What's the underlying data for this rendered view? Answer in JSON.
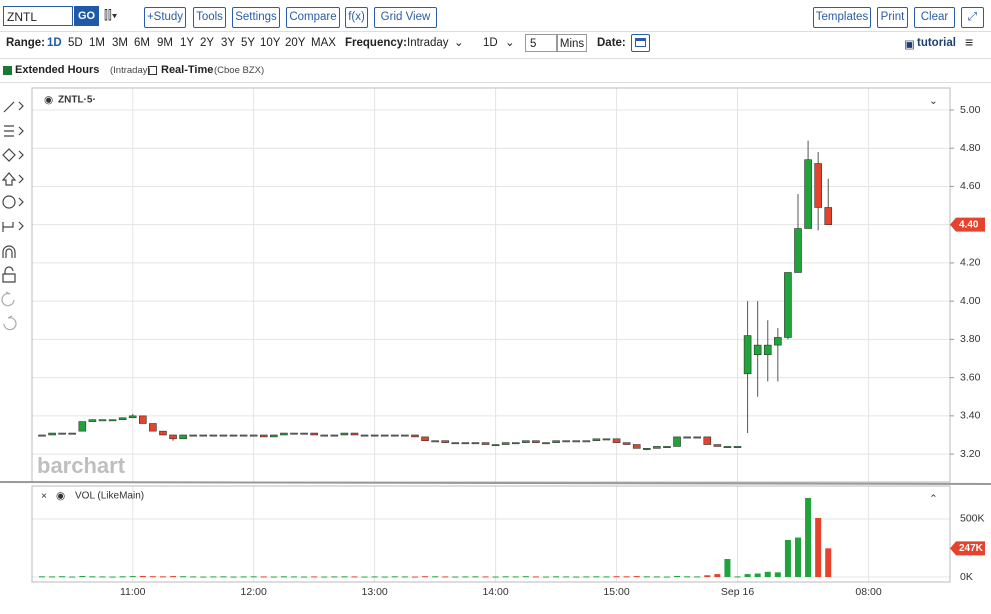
{
  "toolbar": {
    "symbol": "ZNTL",
    "go": "GO",
    "buttons": [
      "+Study",
      "Tools",
      "Settings",
      "Compare",
      "f(x)",
      "Grid View"
    ],
    "right_buttons": [
      "Templates",
      "Print",
      "Clear"
    ]
  },
  "controls": {
    "range_label": "Range:",
    "ranges": [
      "1D",
      "5D",
      "1M",
      "3M",
      "6M",
      "9M",
      "1Y",
      "2Y",
      "3Y",
      "5Y",
      "10Y",
      "20Y",
      "MAX"
    ],
    "frequency_label": "Frequency:",
    "frequency": "Intraday",
    "period": "1D",
    "interval": "5",
    "interval_unit": "Mins",
    "date_label": "Date:",
    "tutorial": "tutorial"
  },
  "legend_bar": {
    "extended": "Extended Hours",
    "extended_note": "(Intraday)",
    "realtime": "Real-Time",
    "realtime_note": "(Cboe BZX)"
  },
  "chart_data": {
    "type": "candlestick",
    "label": "ZNTL·5·",
    "watermark": "barchart",
    "categories": [
      null,
      null,
      null,
      null,
      null,
      null,
      null,
      null,
      null,
      "11:00",
      null,
      null,
      null,
      null,
      null,
      null,
      null,
      null,
      null,
      null,
      null,
      "12:00",
      null,
      null,
      null,
      null,
      null,
      null,
      null,
      null,
      null,
      null,
      null,
      "13:00",
      null,
      null,
      null,
      null,
      null,
      null,
      null,
      null,
      null,
      null,
      null,
      "14:00",
      null,
      null,
      null,
      null,
      null,
      null,
      null,
      null,
      null,
      null,
      null,
      "15:00",
      null,
      null,
      null,
      null,
      null,
      null,
      null,
      null,
      null,
      null,
      null,
      "Sep 16",
      null,
      null,
      null,
      null,
      null,
      null,
      null,
      null,
      null,
      null,
      null,
      null,
      "08:00"
    ],
    "open": [
      3.3,
      3.3,
      3.31,
      3.31,
      3.32,
      3.37,
      3.38,
      3.38,
      3.38,
      3.39,
      3.4,
      3.36,
      3.32,
      3.3,
      3.28,
      3.3,
      3.3,
      3.3,
      3.3,
      3.3,
      3.3,
      3.3,
      3.3,
      3.29,
      3.3,
      3.31,
      3.31,
      3.31,
      3.3,
      3.3,
      3.3,
      3.31,
      3.3,
      3.3,
      3.3,
      3.3,
      3.3,
      3.3,
      3.29,
      3.27,
      3.27,
      3.26,
      3.26,
      3.26,
      3.26,
      3.25,
      3.25,
      3.26,
      3.26,
      3.27,
      3.26,
      3.26,
      3.27,
      3.27,
      3.27,
      3.27,
      3.28,
      3.28,
      3.26,
      3.25,
      3.23,
      3.23,
      3.24,
      3.24,
      3.29,
      3.29,
      3.29,
      3.25,
      3.24,
      3.24,
      3.62,
      3.72,
      3.72,
      3.77,
      3.81,
      4.15,
      4.38,
      4.72,
      4.49,
      null,
      null,
      null,
      null
    ],
    "high": [
      3.3,
      3.31,
      3.31,
      3.31,
      3.37,
      3.38,
      3.38,
      3.38,
      3.39,
      3.41,
      3.4,
      3.36,
      3.32,
      3.3,
      3.3,
      3.3,
      3.3,
      3.3,
      3.3,
      3.3,
      3.3,
      3.3,
      3.3,
      3.3,
      3.31,
      3.31,
      3.31,
      3.31,
      3.3,
      3.3,
      3.31,
      3.31,
      3.3,
      3.3,
      3.3,
      3.3,
      3.3,
      3.3,
      3.29,
      3.27,
      3.27,
      3.26,
      3.26,
      3.26,
      3.26,
      3.25,
      3.26,
      3.26,
      3.27,
      3.27,
      3.26,
      3.27,
      3.27,
      3.27,
      3.27,
      3.28,
      3.28,
      3.28,
      3.26,
      3.25,
      3.23,
      3.24,
      3.24,
      3.29,
      3.29,
      3.29,
      3.29,
      3.25,
      3.24,
      3.24,
      4.0,
      4.0,
      3.9,
      3.86,
      4.15,
      4.56,
      4.84,
      4.78,
      4.64,
      null,
      null,
      null,
      null
    ],
    "low": [
      3.3,
      3.3,
      3.31,
      3.31,
      3.32,
      3.37,
      3.38,
      3.38,
      3.38,
      3.39,
      3.36,
      3.32,
      3.3,
      3.27,
      3.28,
      3.3,
      3.3,
      3.3,
      3.3,
      3.3,
      3.3,
      3.3,
      3.29,
      3.29,
      3.3,
      3.31,
      3.31,
      3.3,
      3.3,
      3.3,
      3.3,
      3.3,
      3.3,
      3.3,
      3.3,
      3.3,
      3.3,
      3.29,
      3.27,
      3.27,
      3.26,
      3.26,
      3.26,
      3.26,
      3.25,
      3.25,
      3.25,
      3.26,
      3.26,
      3.26,
      3.26,
      3.26,
      3.27,
      3.27,
      3.27,
      3.27,
      3.28,
      3.26,
      3.25,
      3.23,
      3.22,
      3.23,
      3.24,
      3.24,
      3.29,
      3.29,
      3.25,
      3.24,
      3.24,
      3.24,
      3.31,
      3.5,
      3.58,
      3.58,
      3.8,
      4.15,
      4.38,
      4.37,
      4.4,
      null,
      null,
      null,
      null
    ],
    "close": [
      3.3,
      3.31,
      3.31,
      3.31,
      3.37,
      3.38,
      3.38,
      3.38,
      3.39,
      3.4,
      3.36,
      3.32,
      3.3,
      3.28,
      3.3,
      3.3,
      3.3,
      3.3,
      3.3,
      3.3,
      3.3,
      3.3,
      3.29,
      3.3,
      3.31,
      3.31,
      3.31,
      3.3,
      3.3,
      3.3,
      3.31,
      3.3,
      3.3,
      3.3,
      3.3,
      3.3,
      3.3,
      3.29,
      3.27,
      3.27,
      3.26,
      3.26,
      3.26,
      3.26,
      3.25,
      3.25,
      3.26,
      3.26,
      3.27,
      3.26,
      3.26,
      3.27,
      3.27,
      3.27,
      3.27,
      3.28,
      3.28,
      3.26,
      3.25,
      3.23,
      3.23,
      3.24,
      3.24,
      3.29,
      3.29,
      3.29,
      3.25,
      3.24,
      3.24,
      3.24,
      3.82,
      3.77,
      3.77,
      3.81,
      4.15,
      4.38,
      4.74,
      4.49,
      4.4,
      null,
      null,
      null,
      null
    ],
    "up_color": "#1fa33a",
    "down_color": "#e5432d",
    "ylim": [
      3.054,
      5.115
    ],
    "yticks": [
      {
        "value": 3.2,
        "label": "3.20"
      },
      {
        "value": 3.4,
        "label": "3.40"
      },
      {
        "value": 3.6,
        "label": "3.60"
      },
      {
        "value": 3.8,
        "label": "3.80"
      },
      {
        "value": 4,
        "label": "4.00"
      },
      {
        "value": 4.2,
        "label": "4.20"
      },
      {
        "value": 4.4,
        "label": "4.40"
      },
      {
        "value": 4.6,
        "label": "4.60"
      },
      {
        "value": 4.8,
        "label": "4.80"
      },
      {
        "value": 5,
        "label": "5.00"
      }
    ],
    "last_price": {
      "value": 4.4,
      "label": "4.40"
    },
    "grid": true,
    "volume": {
      "label": "VOL (LikeMain)",
      "values": [
        6000,
        5000,
        7000,
        4000,
        9000,
        6000,
        5000,
        4000,
        6000,
        8000,
        9000,
        7000,
        6000,
        8000,
        7000,
        5000,
        4000,
        5000,
        6000,
        4000,
        5000,
        6000,
        5000,
        4000,
        6000,
        5000,
        4000,
        5000,
        4000,
        5000,
        6000,
        5000,
        4000,
        5000,
        4000,
        6000,
        5000,
        4000,
        7000,
        6000,
        5000,
        4000,
        5000,
        6000,
        5000,
        4000,
        6000,
        5000,
        7000,
        5000,
        4000,
        6000,
        5000,
        4000,
        5000,
        6000,
        5000,
        7000,
        6000,
        8000,
        6000,
        5000,
        4000,
        9000,
        6000,
        5000,
        15000,
        25000,
        155000,
        5000,
        25000,
        30000,
        45000,
        40000,
        319000,
        340000,
        681000,
        509000,
        247000,
        null,
        null,
        null,
        null
      ],
      "ylim": [
        -43000,
        784000
      ],
      "yticks": [
        {
          "value": 0,
          "label": "0K"
        },
        {
          "value": 500000,
          "label": "500K"
        }
      ],
      "last": {
        "value": 247000,
        "label": "247K"
      }
    }
  }
}
